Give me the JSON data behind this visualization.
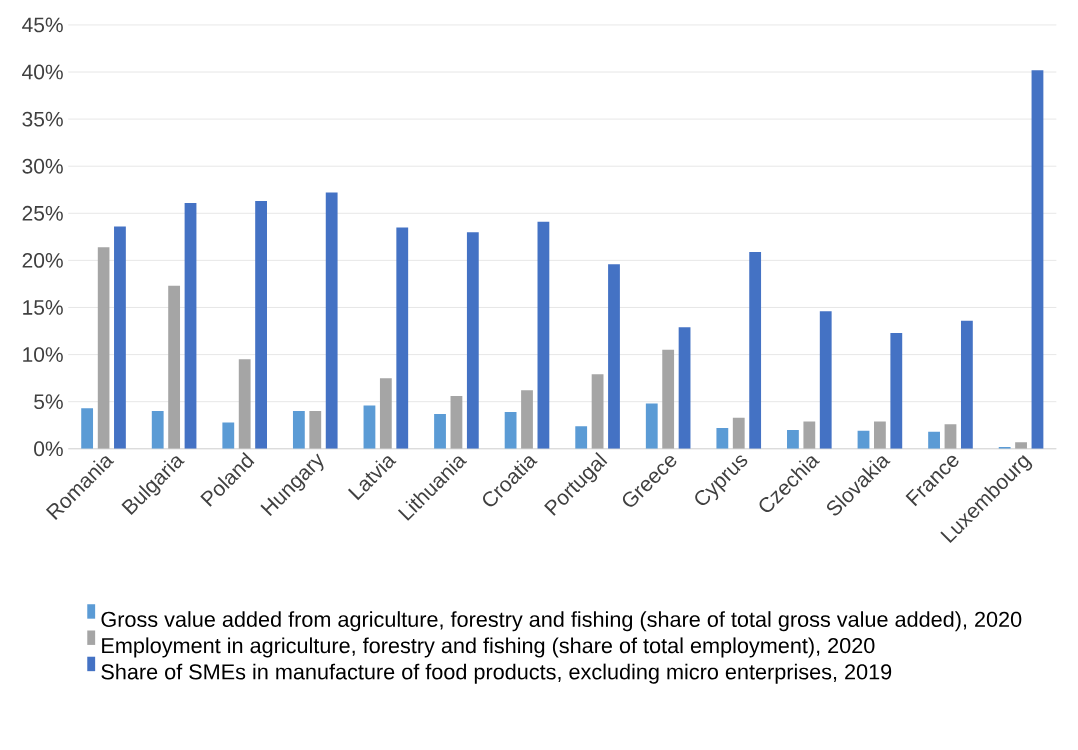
{
  "chart_data": {
    "type": "bar",
    "categories": [
      "Romania",
      "Bulgaria",
      "Poland",
      "Hungary",
      "Latvia",
      "Lithuania",
      "Croatia",
      "Portugal",
      "Greece",
      "Cyprus",
      "Czechia",
      "Slovakia",
      "France",
      "Luxembourg"
    ],
    "series": [
      {
        "name": "Gross value added from agriculture, forestry and fishing (share of total gross value added), 2020",
        "color": "#5b9bd5",
        "values": [
          4.3,
          4.0,
          2.8,
          4.0,
          4.6,
          3.7,
          3.9,
          2.4,
          4.8,
          2.2,
          2.0,
          1.9,
          1.8,
          0.2
        ]
      },
      {
        "name": "Employment in agriculture, forestry and fishing (share of total employment), 2020",
        "color": "#a5a5a5",
        "values": [
          21.4,
          17.3,
          9.5,
          4.0,
          7.5,
          5.6,
          6.2,
          7.9,
          10.5,
          3.3,
          2.9,
          2.9,
          2.6,
          0.7
        ]
      },
      {
        "name": "Share of SMEs in manufacture of food products, excluding micro enterprises, 2019",
        "color": "#4472c4",
        "values": [
          23.6,
          26.1,
          26.3,
          27.2,
          23.5,
          23.0,
          24.1,
          19.6,
          12.9,
          20.9,
          14.6,
          12.3,
          13.6,
          40.2
        ]
      }
    ],
    "ylim": [
      0,
      45
    ],
    "yticks": [
      {
        "value": 0,
        "label": "0%"
      },
      {
        "value": 5,
        "label": "5%"
      },
      {
        "value": 10,
        "label": "10%"
      },
      {
        "value": 15,
        "label": "15%"
      },
      {
        "value": 20,
        "label": "20%"
      },
      {
        "value": 25,
        "label": "25%"
      },
      {
        "value": 30,
        "label": "30%"
      },
      {
        "value": 35,
        "label": "35%"
      },
      {
        "value": 40,
        "label": "40%"
      },
      {
        "value": 45,
        "label": "45%"
      }
    ],
    "grid": "y",
    "legend": "bottom"
  }
}
